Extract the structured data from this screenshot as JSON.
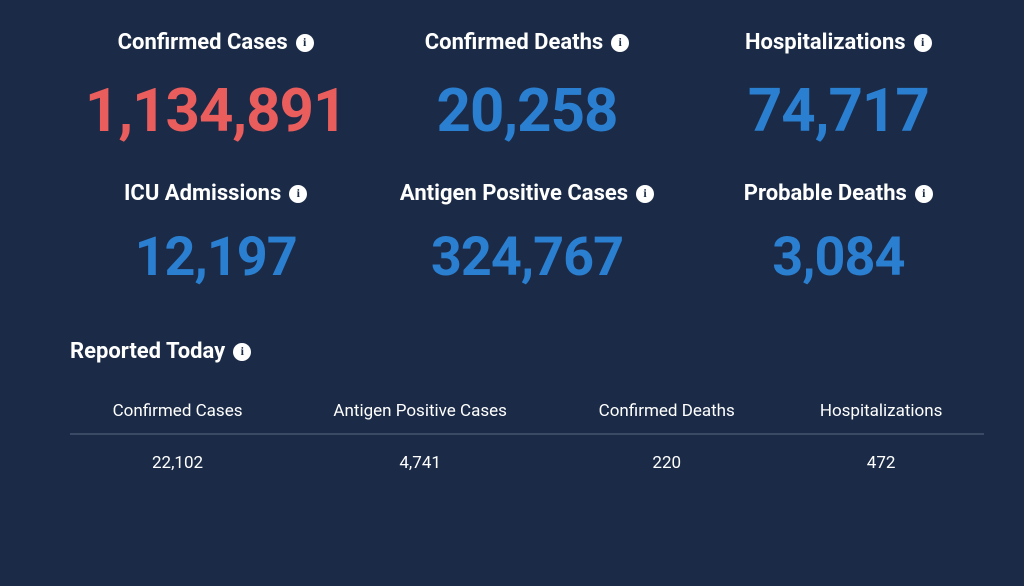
{
  "background_color": "#1b2b47",
  "colors": {
    "red": "#e95d5d",
    "blue": "#2b7fd1",
    "white": "#ffffff",
    "divider": "#3a4a64"
  },
  "stats": {
    "row1": [
      {
        "label": "Confirmed Cases",
        "value": "1,134,891",
        "color": "red"
      },
      {
        "label": "Confirmed Deaths",
        "value": "20,258",
        "color": "blue"
      },
      {
        "label": "Hospitalizations",
        "value": "74,717",
        "color": "blue"
      }
    ],
    "row2": [
      {
        "label": "ICU Admissions",
        "value": "12,197",
        "color": "blue"
      },
      {
        "label": "Antigen Positive Cases",
        "value": "324,767",
        "color": "blue"
      },
      {
        "label": "Probable Deaths",
        "value": "3,084",
        "color": "blue"
      }
    ]
  },
  "reported": {
    "title": "Reported Today",
    "columns": [
      "Confirmed Cases",
      "Antigen Positive Cases",
      "Confirmed Deaths",
      "Hospitalizations"
    ],
    "row": [
      "22,102",
      "4,741",
      "220",
      "472"
    ]
  }
}
